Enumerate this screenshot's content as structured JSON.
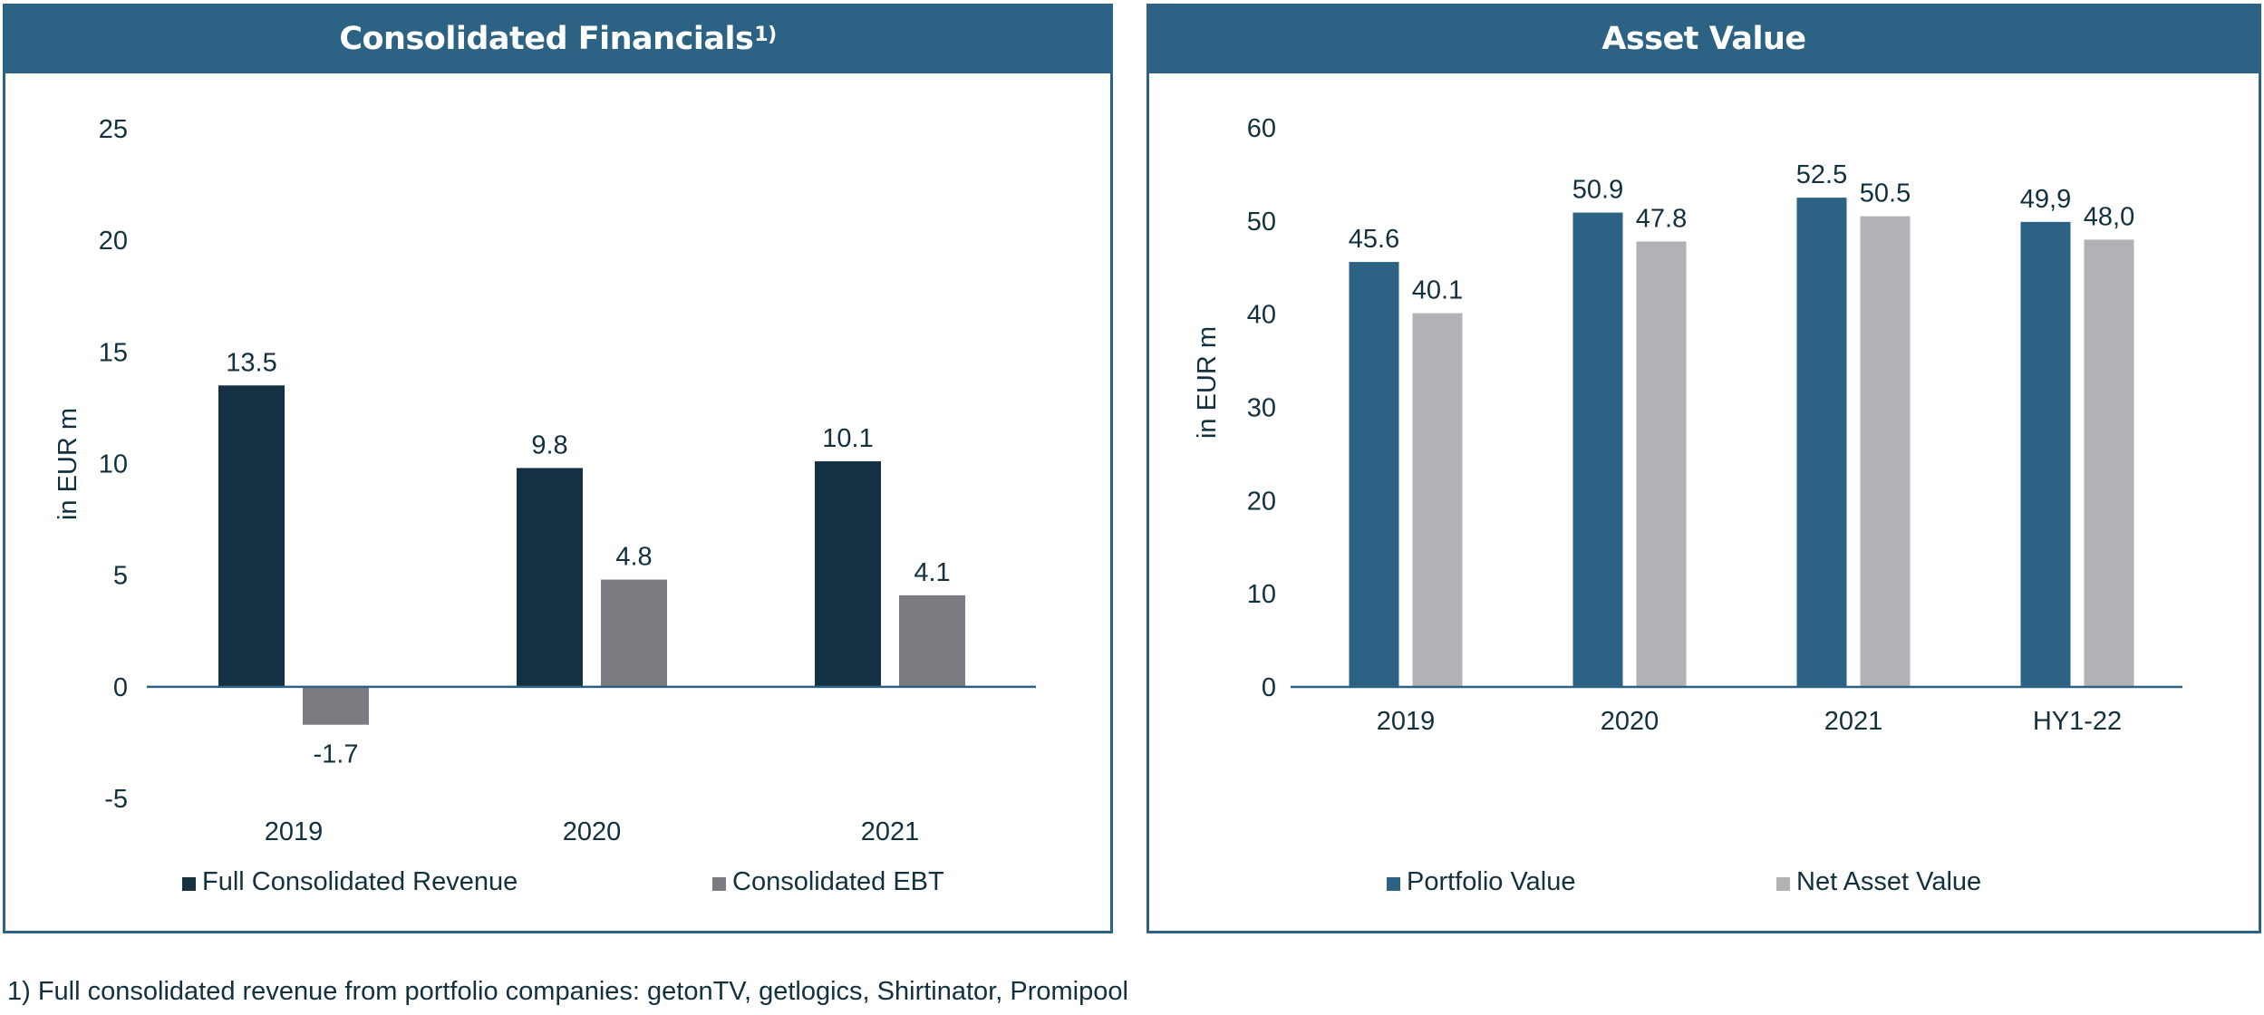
{
  "footnote": "1) Full consolidated revenue from portfolio companies: getonTV, getlogics, Shirtinator, Promipool",
  "colors": {
    "header": "#2c6283",
    "revenue": "#143144",
    "ebt": "#7a7c81",
    "portfolio": "#2c6283",
    "nav": "#b1b2b5",
    "axis": "#2c6283",
    "text": "#13303f"
  },
  "chart_data": [
    {
      "type": "bar",
      "title": "Consolidated Financials",
      "title_superscript": "1)",
      "xlabel": "",
      "ylabel": "in EUR m",
      "ylim": [
        -5,
        25
      ],
      "yticks": [
        "25",
        "20",
        "15",
        "10",
        "5",
        "0",
        "-5"
      ],
      "ytick_values": [
        25,
        20,
        15,
        10,
        5,
        0,
        -5
      ],
      "categories": [
        "2019",
        "2020",
        "2021"
      ],
      "series": [
        {
          "name": "Full Consolidated Revenue",
          "color_key": "revenue",
          "values": [
            13.5,
            9.8,
            10.1
          ],
          "labels": [
            "13.5",
            "9.8",
            "10.1"
          ]
        },
        {
          "name": "Consolidated EBT",
          "color_key": "ebt",
          "values": [
            -1.7,
            4.8,
            4.1
          ],
          "labels": [
            "-1.7",
            "4.8",
            "4.1"
          ]
        }
      ],
      "grid": false,
      "legend": "bottom"
    },
    {
      "type": "bar",
      "title": "Asset Value",
      "title_superscript": "",
      "xlabel": "",
      "ylabel": "in EUR m",
      "ylim": [
        0,
        60
      ],
      "yticks": [
        "60",
        "50",
        "40",
        "30",
        "20",
        "10",
        "0"
      ],
      "ytick_values": [
        60,
        50,
        40,
        30,
        20,
        10,
        0
      ],
      "categories": [
        "2019",
        "2020",
        "2021",
        "HY1-22"
      ],
      "series": [
        {
          "name": "Portfolio Value",
          "color_key": "portfolio",
          "values": [
            45.6,
            50.9,
            52.5,
            49.9
          ],
          "labels": [
            "45.6",
            "50.9",
            "52.5",
            "49,9"
          ]
        },
        {
          "name": "Net Asset Value",
          "color_key": "nav",
          "values": [
            40.1,
            47.8,
            50.5,
            48.0
          ],
          "labels": [
            "40.1",
            "47.8",
            "50.5",
            "48,0"
          ]
        }
      ],
      "grid": false,
      "legend": "bottom"
    }
  ]
}
